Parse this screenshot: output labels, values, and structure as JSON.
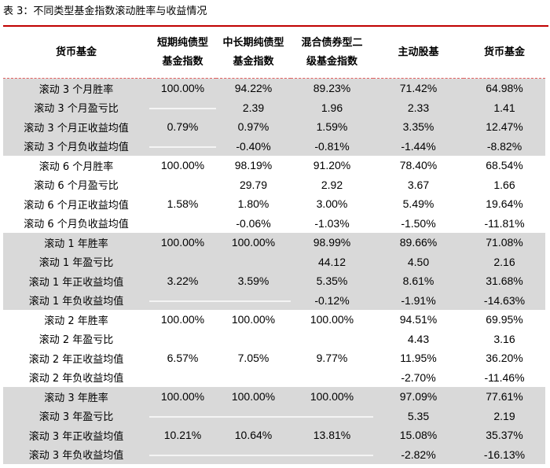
{
  "title": "表 3：不同类型基金指数滚动胜率与收益情况",
  "colors": {
    "accent": "#c00000",
    "band": "#d9d9d9"
  },
  "headers": [
    "货币基金",
    "短期纯债型基金指数",
    "中长期纯债型基金指数",
    "混合债券型二级基金指数",
    "主动股基",
    "货币基金"
  ],
  "groups": [
    {
      "shaded": true,
      "rows": [
        [
          "滚动 3 个月胜率",
          "100.00%",
          "94.22%",
          "89.23%",
          "71.42%",
          "64.98%"
        ],
        [
          "滚动 3 个月盈亏比",
          "",
          "2.39",
          "1.96",
          "2.33",
          "1.41"
        ],
        [
          "滚动 3 个月正收益均值",
          "0.79%",
          "0.97%",
          "1.59%",
          "3.35%",
          "12.47%"
        ],
        [
          "滚动 3 个月负收益均值",
          "",
          "-0.40%",
          "-0.81%",
          "-1.44%",
          "-8.82%"
        ]
      ]
    },
    {
      "shaded": false,
      "rows": [
        [
          "滚动 6 个月胜率",
          "100.00%",
          "98.19%",
          "91.20%",
          "78.40%",
          "68.54%"
        ],
        [
          "滚动 6 个月盈亏比",
          "",
          "29.79",
          "2.92",
          "3.67",
          "1.66"
        ],
        [
          "滚动 6 个月正收益均值",
          "1.58%",
          "1.80%",
          "3.00%",
          "5.49%",
          "19.64%"
        ],
        [
          "滚动 6 个月负收益均值",
          "",
          "-0.06%",
          "-1.03%",
          "-1.50%",
          "-11.81%"
        ]
      ]
    },
    {
      "shaded": true,
      "rows": [
        [
          "滚动 1 年胜率",
          "100.00%",
          "100.00%",
          "98.99%",
          "89.66%",
          "71.08%"
        ],
        [
          "滚动 1 年盈亏比",
          "",
          "",
          "44.12",
          "4.50",
          "2.16"
        ],
        [
          "滚动 1 年正收益均值",
          "3.22%",
          "3.59%",
          "5.35%",
          "8.61%",
          "31.68%"
        ],
        [
          "滚动 1 年负收益均值",
          "",
          "",
          "-0.12%",
          "-1.91%",
          "-14.63%"
        ]
      ]
    },
    {
      "shaded": false,
      "rows": [
        [
          "滚动 2 年胜率",
          "100.00%",
          "100.00%",
          "100.00%",
          "94.51%",
          "69.95%"
        ],
        [
          "滚动 2 年盈亏比",
          "",
          "",
          "",
          "4.43",
          "3.16"
        ],
        [
          "滚动 2 年正收益均值",
          "6.57%",
          "7.05%",
          "9.77%",
          "11.95%",
          "36.20%"
        ],
        [
          "滚动 2 年负收益均值",
          "",
          "",
          "",
          "-2.70%",
          "-11.46%"
        ]
      ]
    },
    {
      "shaded": true,
      "rows": [
        [
          "滚动 3 年胜率",
          "100.00%",
          "100.00%",
          "100.00%",
          "97.09%",
          "77.61%"
        ],
        [
          "滚动 3 年盈亏比",
          "",
          "",
          "",
          "5.35",
          "2.19"
        ],
        [
          "滚动 3 年正收益均值",
          "10.21%",
          "10.64%",
          "13.81%",
          "15.08%",
          "35.37%"
        ],
        [
          "滚动 3 年负收益均值",
          "",
          "",
          "",
          "-2.82%",
          "-16.13%"
        ]
      ]
    }
  ]
}
